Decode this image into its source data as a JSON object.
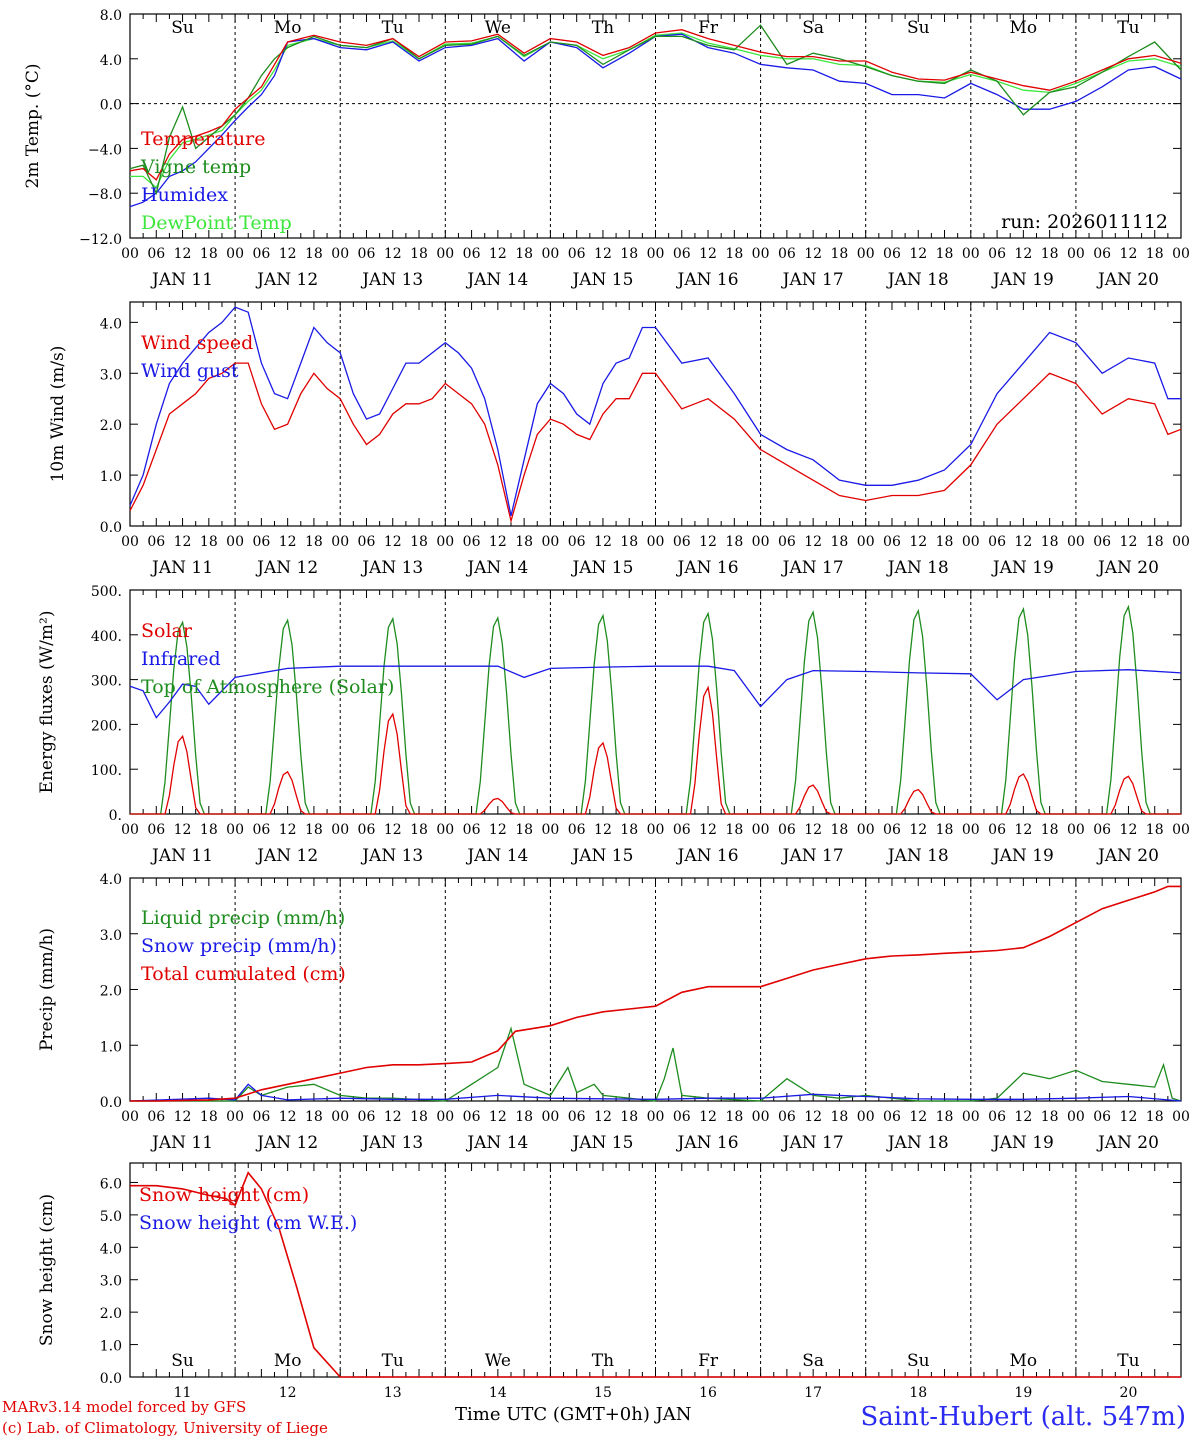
{
  "chart_data": [
    {
      "id": "temp",
      "type": "line",
      "ylabel": "2m Temp. (°C)",
      "ylim": [
        -12,
        8
      ],
      "yticks": [
        "8.0",
        "4.0",
        "0.0",
        "−4.0",
        "−8.0",
        "−12.0"
      ],
      "yticks_values": [
        8,
        4,
        0,
        -4,
        -8,
        -12
      ],
      "zero_line": true,
      "run_label": "run: 2026011112",
      "weekdays": [
        {
          "label": "Su",
          "color": "#e00000"
        },
        {
          "label": "Mo",
          "color": "#000000"
        },
        {
          "label": "Tu",
          "color": "#000000"
        },
        {
          "label": "We",
          "color": "#000000"
        },
        {
          "label": "Th",
          "color": "#000000"
        },
        {
          "label": "Fr",
          "color": "#000000"
        },
        {
          "label": "Sa",
          "color": "#e00000"
        },
        {
          "label": "Su",
          "color": "#e00000"
        },
        {
          "label": "Mo",
          "color": "#000000"
        },
        {
          "label": "Tu",
          "color": "#000000"
        }
      ],
      "x_hours": [
        0,
        3,
        6,
        9,
        12,
        15,
        18,
        21,
        24,
        27,
        30,
        33,
        36,
        42,
        48,
        54,
        60,
        66,
        72,
        78,
        84,
        90,
        96,
        102,
        108,
        114,
        120,
        126,
        132,
        138,
        144,
        150,
        156,
        162,
        168,
        174,
        180,
        186,
        192,
        198,
        204,
        210,
        216,
        222,
        228,
        234,
        240
      ],
      "series": [
        {
          "name": "Temperature",
          "color": "#e00000",
          "values": [
            -6,
            -5.8,
            -6.8,
            -4.5,
            -3.2,
            -2.9,
            -2.5,
            -2,
            -0.5,
            0.5,
            1.5,
            3.5,
            5.5,
            6.1,
            5.5,
            5.2,
            5.8,
            4.2,
            5.5,
            5.6,
            6.2,
            4.5,
            5.8,
            5.5,
            4.3,
            5,
            6.3,
            6.6,
            5.8,
            5.2,
            4.6,
            4.2,
            4.2,
            3.8,
            3.8,
            2.8,
            2.2,
            2.1,
            2.8,
            2.2,
            1.6,
            1.2,
            2,
            3,
            4,
            4.3,
            3.6
          ]
        },
        {
          "name": "Vigne temp",
          "color": "#1e8c1e",
          "values": [
            -5.8,
            -5.5,
            -8,
            -3,
            -0.3,
            -4,
            -3,
            -2,
            -1,
            0.5,
            2.5,
            4,
            5,
            6,
            5.2,
            5,
            5.8,
            4,
            5.2,
            5.3,
            6,
            4.3,
            5.5,
            5.2,
            3.5,
            4.8,
            6,
            6,
            5.2,
            4.8,
            7,
            3.5,
            4.5,
            4,
            3.3,
            2.5,
            2,
            1.8,
            3,
            2,
            -1,
            1,
            1.5,
            2.8,
            4.2,
            5.5,
            3
          ]
        },
        {
          "name": "Humidex",
          "color": "#1a1ae6",
          "values": [
            -9.2,
            -8.8,
            -8,
            -6.5,
            -6,
            -5.2,
            -4,
            -2.8,
            -1.5,
            -0.3,
            0.8,
            2.5,
            5.5,
            5.8,
            5,
            4.8,
            5.5,
            3.8,
            5,
            5.2,
            5.8,
            3.8,
            5.5,
            5,
            3.2,
            4.5,
            6,
            6.2,
            5,
            4.5,
            3.5,
            3.2,
            3,
            2,
            1.8,
            0.8,
            0.8,
            0.5,
            1.8,
            0.8,
            -0.5,
            -0.5,
            0.2,
            1.5,
            3,
            3.3,
            2.2
          ]
        },
        {
          "name": "DewPoint Temp",
          "color": "#3ce63c",
          "values": [
            -6.5,
            -6.5,
            -7.5,
            -5,
            -3.5,
            -3.2,
            -2.8,
            -2.4,
            -1,
            0.2,
            1.2,
            3,
            5.2,
            5.8,
            5.2,
            5,
            5.6,
            4,
            5.3,
            5.4,
            6,
            4.2,
            5.5,
            5.2,
            4,
            4.8,
            6.1,
            6.3,
            5.4,
            4.9,
            4.3,
            4,
            4,
            3.5,
            3.4,
            2.5,
            2,
            1.9,
            2.6,
            2,
            1.2,
            1,
            1.8,
            2.8,
            3.8,
            4,
            3.3
          ]
        }
      ]
    },
    {
      "id": "wind",
      "type": "line",
      "ylabel": "10m Wind (m/s)",
      "ylim": [
        0,
        4.4
      ],
      "yticks": [
        "4.0",
        "3.0",
        "2.0",
        "1.0",
        "0.0"
      ],
      "yticks_values": [
        4,
        3,
        2,
        1,
        0
      ],
      "x_hours": [
        0,
        3,
        6,
        9,
        12,
        15,
        18,
        21,
        24,
        27,
        30,
        33,
        36,
        39,
        42,
        45,
        48,
        51,
        54,
        57,
        60,
        63,
        66,
        69,
        72,
        75,
        78,
        81,
        84,
        87,
        90,
        93,
        96,
        99,
        102,
        105,
        108,
        111,
        114,
        117,
        120,
        126,
        132,
        138,
        144,
        150,
        156,
        162,
        168,
        174,
        180,
        186,
        192,
        198,
        204,
        210,
        216,
        222,
        228,
        234,
        237,
        240
      ],
      "series": [
        {
          "name": "Wind speed",
          "color": "#e00000",
          "values": [
            0.3,
            0.8,
            1.5,
            2.2,
            2.4,
            2.6,
            2.9,
            3,
            3.2,
            3.2,
            2.4,
            1.9,
            2,
            2.6,
            3,
            2.7,
            2.5,
            2,
            1.6,
            1.8,
            2.2,
            2.4,
            2.4,
            2.5,
            2.8,
            2.6,
            2.4,
            2,
            1.2,
            0.1,
            1,
            1.8,
            2.1,
            2,
            1.8,
            1.7,
            2.2,
            2.5,
            2.5,
            3,
            3,
            2.3,
            2.5,
            2.1,
            1.5,
            1.2,
            0.9,
            0.6,
            0.5,
            0.6,
            0.6,
            0.7,
            1.2,
            2,
            2.5,
            3,
            2.8,
            2.2,
            2.5,
            2.4,
            1.8,
            1.9
          ]
        },
        {
          "name": "Wind gust",
          "color": "#1a1ae6",
          "values": [
            0.4,
            1,
            2,
            2.8,
            3.2,
            3.5,
            3.8,
            4,
            4.3,
            4.2,
            3.2,
            2.6,
            2.5,
            3.2,
            3.9,
            3.6,
            3.4,
            2.6,
            2.1,
            2.2,
            2.7,
            3.2,
            3.2,
            3.4,
            3.6,
            3.4,
            3.1,
            2.5,
            1.5,
            0.2,
            1.3,
            2.4,
            2.8,
            2.6,
            2.2,
            2,
            2.8,
            3.2,
            3.3,
            3.9,
            3.9,
            3.2,
            3.3,
            2.6,
            1.8,
            1.5,
            1.3,
            0.9,
            0.8,
            0.8,
            0.9,
            1.1,
            1.6,
            2.6,
            3.2,
            3.8,
            3.6,
            3,
            3.3,
            3.2,
            2.5,
            2.5
          ]
        }
      ]
    },
    {
      "id": "flux",
      "type": "line",
      "ylabel": "Energy fluxes (W/m²)",
      "ylim": [
        0,
        500
      ],
      "yticks": [
        "500.",
        "400.",
        "300.",
        "200.",
        "100.",
        "0."
      ],
      "yticks_values": [
        500,
        400,
        300,
        200,
        100,
        0
      ],
      "toa_peaks": [
        430,
        435,
        438,
        440,
        445,
        450,
        453,
        456,
        460,
        465
      ],
      "solar_peaks": [
        175,
        95,
        225,
        35,
        160,
        285,
        65,
        55,
        90,
        85
      ],
      "infrared": {
        "x_hours": [
          0,
          3,
          6,
          9,
          12,
          15,
          18,
          24,
          36,
          48,
          60,
          72,
          84,
          90,
          96,
          108,
          120,
          132,
          138,
          144,
          150,
          156,
          168,
          180,
          192,
          198,
          204,
          216,
          228,
          240
        ],
        "values": [
          285,
          275,
          215,
          250,
          290,
          285,
          245,
          305,
          325,
          330,
          330,
          330,
          330,
          305,
          325,
          328,
          330,
          330,
          320,
          240,
          300,
          320,
          318,
          315,
          313,
          255,
          300,
          318,
          322,
          315
        ]
      },
      "series": [
        {
          "name": "Solar",
          "color": "#e00000"
        },
        {
          "name": "Infrared",
          "color": "#1a1ae6"
        },
        {
          "name": "Top of Atmosphere (Solar)",
          "color": "#1e8c1e"
        }
      ]
    },
    {
      "id": "precip",
      "type": "line",
      "ylabel": "Precip (mm/h)",
      "ylim": [
        0,
        4
      ],
      "yticks": [
        "4.0",
        "3.0",
        "2.0",
        "1.0",
        "0.0"
      ],
      "yticks_values": [
        4,
        3,
        2,
        1,
        0
      ],
      "liquid": {
        "x_hours": [
          0,
          24,
          27,
          30,
          36,
          42,
          48,
          54,
          60,
          72,
          78,
          84,
          87,
          90,
          96,
          100,
          102,
          106,
          108,
          114,
          120,
          122,
          124,
          126,
          132,
          144,
          150,
          156,
          162,
          168,
          174,
          180,
          192,
          198,
          204,
          210,
          216,
          222,
          228,
          234,
          236,
          238,
          240
        ],
        "values": [
          0,
          0,
          0.25,
          0.1,
          0.25,
          0.3,
          0.1,
          0.05,
          0.05,
          0,
          0.3,
          0.6,
          1.3,
          0.3,
          0.1,
          0.6,
          0.15,
          0.3,
          0.1,
          0.05,
          0,
          0.4,
          0.95,
          0.1,
          0.05,
          0,
          0.4,
          0.1,
          0.05,
          0.1,
          0.05,
          0,
          0,
          0.05,
          0.5,
          0.4,
          0.55,
          0.35,
          0.3,
          0.25,
          0.65,
          0.05,
          0
        ]
      },
      "snow": {
        "x_hours": [
          0,
          18,
          24,
          27,
          30,
          36,
          48,
          60,
          72,
          84,
          96,
          108,
          120,
          132,
          144,
          156,
          168,
          180,
          192,
          204,
          216,
          228,
          240
        ],
        "values": [
          0,
          0.05,
          0.02,
          0.3,
          0.1,
          0.02,
          0.05,
          0.03,
          0.03,
          0.1,
          0.05,
          0.04,
          0.03,
          0.05,
          0.05,
          0.12,
          0.08,
          0.04,
          0.03,
          0.03,
          0.05,
          0.08,
          0
        ]
      },
      "cumulated": {
        "x_hours": [
          0,
          6,
          12,
          18,
          24,
          30,
          36,
          42,
          48,
          54,
          60,
          66,
          72,
          78,
          84,
          88,
          96,
          102,
          108,
          114,
          120,
          126,
          132,
          138,
          144,
          150,
          156,
          162,
          168,
          174,
          180,
          186,
          192,
          198,
          204,
          210,
          216,
          222,
          228,
          234,
          237,
          240
        ],
        "values": [
          0,
          0,
          0.01,
          0.02,
          0.05,
          0.2,
          0.3,
          0.4,
          0.5,
          0.6,
          0.65,
          0.65,
          0.67,
          0.7,
          0.9,
          1.25,
          1.35,
          1.5,
          1.6,
          1.65,
          1.7,
          1.95,
          2.05,
          2.05,
          2.05,
          2.2,
          2.35,
          2.45,
          2.55,
          2.6,
          2.62,
          2.65,
          2.67,
          2.7,
          2.75,
          2.95,
          3.2,
          3.45,
          3.6,
          3.75,
          3.85,
          3.85
        ]
      },
      "series": [
        {
          "name": "Liquid precip (mm/h)",
          "color": "#1e8c1e"
        },
        {
          "name": "Snow precip (mm/h)",
          "color": "#1a1ae6"
        },
        {
          "name": "Total cumulated (cm)",
          "color": "#e00000"
        }
      ]
    },
    {
      "id": "snow",
      "type": "line",
      "ylabel": "Snow height (cm)",
      "ylim": [
        0,
        6.6
      ],
      "yticks": [
        "6.0",
        "5.0",
        "4.0",
        "3.0",
        "2.0",
        "1.0",
        "0.0"
      ],
      "yticks_values": [
        6,
        5,
        4,
        3,
        2,
        1,
        0
      ],
      "x_ticks": [
        "11",
        "12",
        "13",
        "14",
        "15",
        "16",
        "17",
        "18",
        "19",
        "20"
      ],
      "height": {
        "x_hours": [
          0,
          6,
          12,
          18,
          22,
          24,
          27,
          30,
          34,
          38,
          42,
          48,
          240
        ],
        "values": [
          5.9,
          5.9,
          5.8,
          5.6,
          5.5,
          5.3,
          6.3,
          5.8,
          4.6,
          2.8,
          0.9,
          0,
          0
        ]
      },
      "series": [
        {
          "name": "Snow height (cm)",
          "color": "#e00000"
        },
        {
          "name": "Snow height (cm W.E.)",
          "color": "#1a1ae6"
        }
      ]
    }
  ],
  "x_axis": {
    "hour_labels": [
      "00",
      "06",
      "12",
      "18"
    ],
    "last_label": "00",
    "day_labels": [
      "JAN 11",
      "JAN 12",
      "JAN 13",
      "JAN 14",
      "JAN 15",
      "JAN 16",
      "JAN 17",
      "JAN 18",
      "JAN 19",
      "JAN 20"
    ]
  },
  "footer": {
    "model": "MARv3.14 model forced by GFS",
    "credit": "(c) Lab. of Climatology, University of Liege",
    "time_label": "Time UTC (GMT+0h) JAN",
    "station": "Saint-Hubert (alt. 547m)"
  }
}
